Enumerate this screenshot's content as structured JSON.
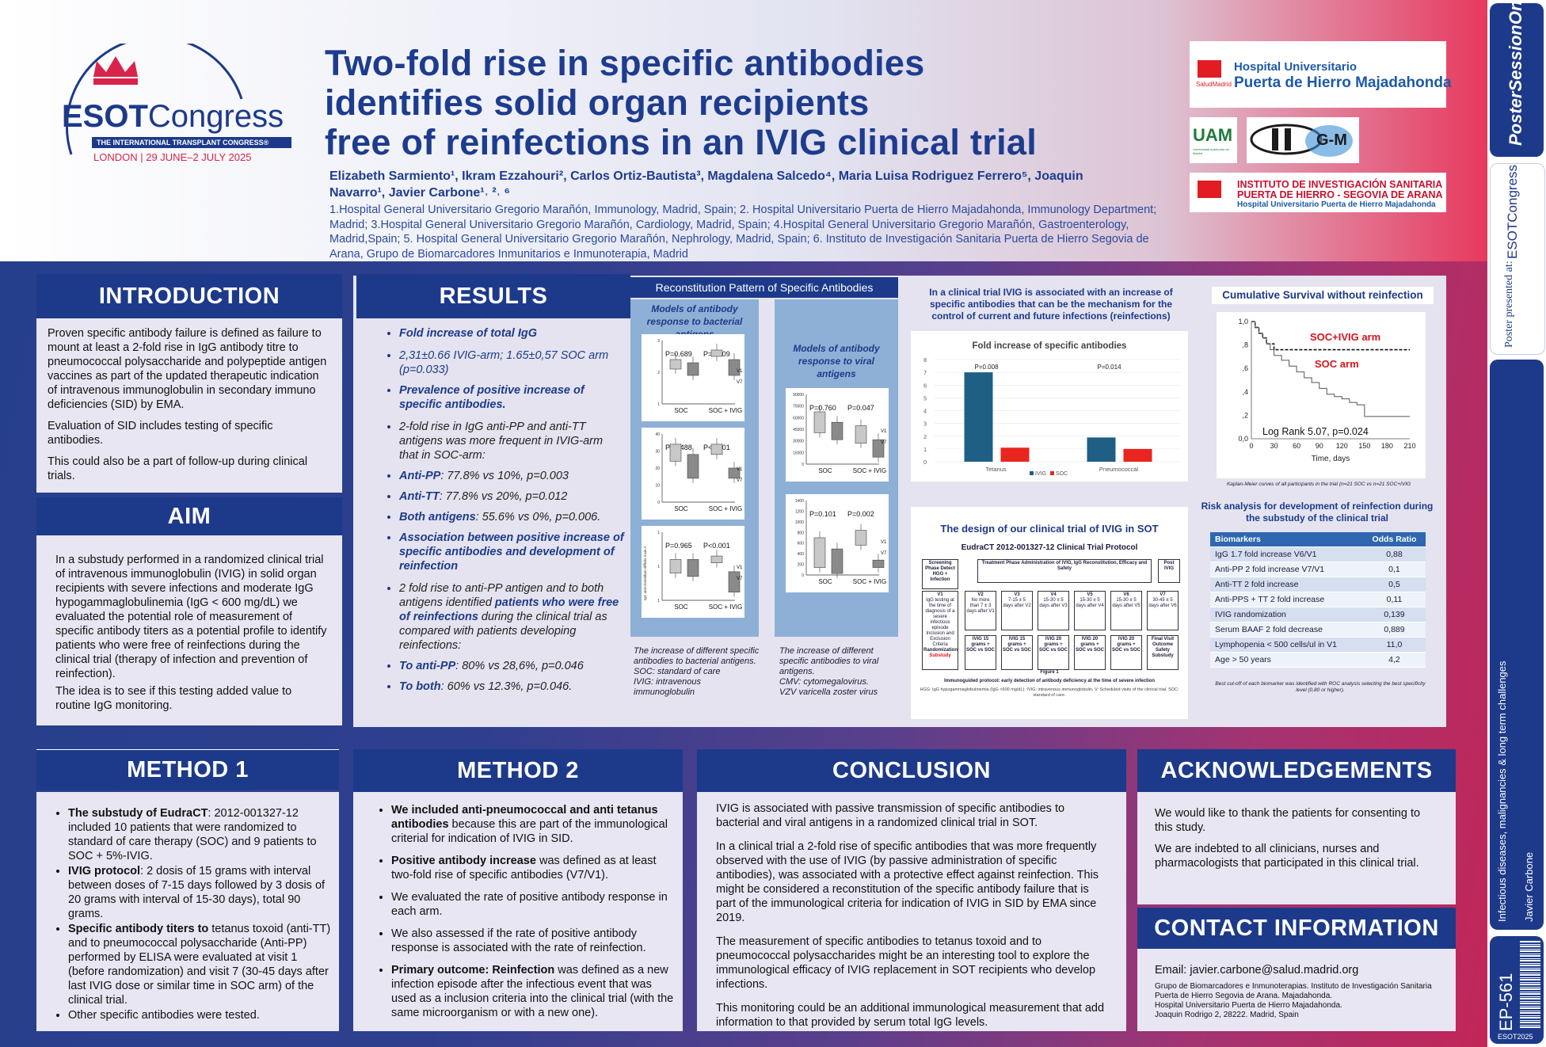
{
  "header": {
    "title_lines": [
      "Two-fold rise in specific antibodies",
      "identifies solid organ recipients",
      "free of reinfections in an IVIG clinical trial"
    ],
    "authors": "Elizabeth Sarmiento¹, Ikram Ezzahouri², Carlos Ortiz-Bautista³, Magdalena Salcedo⁴, Maria Luisa Rodriguez Ferrero⁵, Joaquin Navarro¹, Javier Carbone¹˒ ²˒ ⁶",
    "affiliations": "1.Hospital General Universitario Gregorio Marañón, Immunology, Madrid, Spain; 2. Hospital Universitario Puerta de Hierro Majadahonda, Immunology Department; Madrid; 3.Hospital General Universitario Gregorio Marañón, Cardiology, Madrid, Spain; 4.Hospital General Universitario Gregorio Marañón, Gastroenterology, Madrid,Spain; 5. Hospital General Universitario Gregorio Marañón, Nephrology, Madrid, Spain; 6. Instituto de Investigación Sanitaria Puerta de Hierro Segovia de Arana, Grupo de Biomarcadores Inmunitarios e Inmunoterapia, Madrid"
  },
  "esot": {
    "name_a": "ESOT",
    "name_b": "Congress",
    "tagline": "THE INTERNATIONAL TRANSPLANT CONGRESS®",
    "city": "LONDON | 29 JUNE–2 JULY 2025"
  },
  "logos": {
    "hospital_small": "SaludMadrid",
    "hospital_a": "Hospital Universitario",
    "hospital_b": "Puerta de Hierro Majadahonda",
    "uam": "UAM",
    "uam_sub": "Universidad Autónoma de Madrid",
    "gm": "G-M",
    "inst_a": "INSTITUTO DE INVESTIGACIÓN SANITARIA",
    "inst_b": "PUERTA DE HIERRO - SEGOVIA DE ARANA",
    "inst_c": "Hospital Universitario Puerta de Hierro Majadahonda"
  },
  "sidebar": {
    "poster_session": "PosterSessionOnline",
    "poster_presented": "Poster presented at:",
    "esot_congress": "ESOTCongress",
    "topic": "Infectious diseases, malignancies & long term challenges",
    "presenter": "Javier Carbone",
    "code": "EP-561",
    "year": "ESOT2025"
  },
  "introduction": {
    "heading": "INTRODUCTION",
    "p1": "Proven specific antibody failure is defined as failure to mount at least a 2-fold rise in IgG antibody titre to pneumococcal polysaccharide and polypeptide antigen vaccines as part of the updated therapeutic indication of intravenous immunoglobulin in secondary immuno deficiencies (SID) by EMA.",
    "p2": "Evaluation of SID includes testing of specific antibodies.",
    "p3": "This could also be a part of follow-up during clinical trials."
  },
  "aim": {
    "heading": "AIM",
    "p1": "In a substudy performed in a randomized clinical trial of intravenous immunoglobulin (IVIG) in solid organ recipients with severe infections and moderate IgG hypogammaglobulinemia (IgG < 600 mg/dL) we evaluated the potential role of measurement of specific antibody titers as a potential profile to identify patients who were free of reinfections during the clinical trial (therapy of infection and prevention of reinfection).",
    "p2": "The idea is to see if this testing added value to routine IgG monitoring."
  },
  "results": {
    "heading": "RESULTS",
    "items": [
      {
        "b": "Fold increase of total IgG",
        "t": ""
      },
      {
        "b": "",
        "t": "2,31±0.66 IVIG-arm; 1.65±0,57 SOC arm (p=0.033)",
        "blue": true
      },
      {
        "b": "Prevalence of positive increase of specific antibodies.",
        "t": ""
      },
      {
        "b": "",
        "t": "2-fold rise in IgG anti-PP and anti-TT antigens was more frequent in IVIG-arm that in SOC-arm:"
      },
      {
        "b": "Anti-PP",
        "t": ": 77.8% vs 10%, p=0.003"
      },
      {
        "b": "Anti-TT",
        "t": ": 77.8% vs 20%, p=0.012"
      },
      {
        "b": "Both antigens",
        "t": ": 55.6% vs 0%, p=0.006."
      },
      {
        "b": "Association between positive increase of specific antibodies and development of reinfection",
        "t": ""
      },
      {
        "b": "",
        "t": "2 fold rise to anti-PP antigen and to both antigens identified ",
        "b2": "patients who were free of reinfections",
        "t2": " during the clinical trial as compared with patients developing reinfections:"
      },
      {
        "b": "To anti-PP",
        "t": ": 80% vs 28,6%, p=0.046"
      },
      {
        "b": "To both",
        "t": ": 60% vs 12.3%, p=0.046."
      }
    ]
  },
  "reconstitution": {
    "title": "Reconstitution Pattern of Specific Antibodies",
    "bact_title": "Models of antibody response to bacterial antigens",
    "viral_title": "Models of antibody response to viral antigens",
    "bact_caption": "The increase of different specific antibodies to bacterial antigens.\nSOC: standard of care\nIVIG: intravenous immunoglobulin",
    "viral_caption": "The increase of different specific antibodies to viral antigens.\nCMV: cytomegalovirus.\nVZV varicella zoster virus",
    "bact_panels": [
      {
        "p1": "P=0.689",
        "p2": "P=0.009",
        "yticks": [
          "3",
          "2",
          "1"
        ]
      },
      {
        "p1": "P=0.488",
        "p2": "P<0.001",
        "yticks": [
          "40",
          "30",
          "20",
          "10",
          "0"
        ]
      },
      {
        "p1": "P=0.965",
        "p2": "P<0.001",
        "yticks": [
          "1",
          "1",
          "1"
        ]
      }
    ],
    "viral_panels": [
      {
        "p1": "P=0.760",
        "p2": "P=0.047",
        "yticks": [
          "90000",
          "75000",
          "60000",
          "45000",
          "30000",
          "15000",
          "0"
        ]
      },
      {
        "p1": "P=0.101",
        "p2": "P=0.002",
        "yticks": [
          "1400",
          "1200",
          "1000",
          "800",
          "600",
          "400",
          "200",
          "0"
        ]
      }
    ],
    "groups": [
      "SOC",
      "SOC + IVIG"
    ],
    "legend": [
      "V1",
      "V7"
    ],
    "ylabel3": "IgG anti-clostridium difficile toxin A"
  },
  "fold_chart": {
    "intro": "In a clinical trial IVIG is associated with an increase of specific antibodies that can be the mechanism for the control of current and future infections (reinfections)",
    "chart_data": {
      "type": "bar",
      "title": "Fold increase of specific antibodies",
      "categories": [
        "Tetanus",
        "Pneumococcal"
      ],
      "series": [
        {
          "name": "IVIG",
          "values": [
            7.0,
            1.9
          ],
          "color": "#1f5f86"
        },
        {
          "name": "SOC",
          "values": [
            1.1,
            1.0
          ],
          "color": "#e8251f"
        }
      ],
      "annotations": [
        "P=0.008",
        "P=0.014"
      ],
      "ylim": [
        0,
        8
      ],
      "yticks": [
        "0",
        "1",
        "2",
        "3",
        "4",
        "5",
        "6",
        "7",
        "8"
      ],
      "legend": "bottom"
    }
  },
  "design": {
    "title": "The design of our clinical trial of IVIG in SOT",
    "protocol": "EudraCT 2012-001327-12 Clinical Trial Protocol",
    "screening": "Screening Phase Detect HGG + Infection",
    "treatment": "Treatment Phase Administration of IVIG, IgG Reconstitution, Efficacy and Safety",
    "post": "Post IVIG",
    "v1": "V1",
    "v1_text": "IgG testing at the time of diagnosis of a severe infectious episode Inclusion and Exclusion Criteria",
    "randomization": "Randomization",
    "substudy": "Substudy",
    "visits": [
      {
        "v": "V2",
        "d": "No more than 7 ± 3 days after V1",
        "r": "IVIG 15 grams + SOC vs SOC"
      },
      {
        "v": "V3",
        "d": "7-15 ± 5 days after V2",
        "r": "IVIG 15 grams + SOC vs SOC"
      },
      {
        "v": "V4",
        "d": "15-30 ± 5 days after V3",
        "r": "IVIG 20 grams + SOC vs SOC"
      },
      {
        "v": "V5",
        "d": "15-30 ± 5 days after V4",
        "r": "IVIG 20 grams + SOC vs SOC"
      },
      {
        "v": "V6",
        "d": "15-30 ± 5 days after V5",
        "r": "IVIG 20 grams + SOC vs SOC"
      },
      {
        "v": "V7",
        "d": "30-45 ± 5 days after V6",
        "r": "Final Visit Outcome Safety Substudy"
      }
    ],
    "figure": "Figure 1",
    "fig_caption": "Immunoguided protocol: early detection of antibody deficiency at the time of severe infection",
    "fig_note": "HGG: IgG hypogammaglobulinemia (IgG <600 mg/dL). IVIG: intravenous immunoglobulin. V: Scheduled visits of the clinical trial. SOC: standard of care."
  },
  "survival": {
    "title": "Cumulative Survival without reinfection",
    "chart_data": {
      "type": "line",
      "xlabel": "Time, days",
      "xticks": [
        "0",
        "30",
        "60",
        "90",
        "120",
        "150",
        "180",
        "210"
      ],
      "yticks": [
        "0,0",
        ",2",
        ",4",
        ",6",
        ",8",
        "1,0"
      ],
      "series": [
        {
          "name": "SOC+IVIG arm",
          "color": "#d8141c",
          "x": [
            0,
            5,
            10,
            15,
            20,
            30,
            210
          ],
          "y": [
            1.0,
            0.95,
            0.9,
            0.86,
            0.81,
            0.76,
            0.76
          ]
        },
        {
          "name": "SOC arm",
          "color": "#d8141c",
          "x": [
            0,
            5,
            10,
            15,
            20,
            25,
            30,
            40,
            50,
            60,
            70,
            80,
            90,
            100,
            110,
            120,
            130,
            140,
            150,
            160,
            210
          ],
          "y": [
            1.0,
            0.95,
            0.9,
            0.86,
            0.81,
            0.76,
            0.71,
            0.67,
            0.62,
            0.57,
            0.52,
            0.48,
            0.43,
            0.38,
            0.36,
            0.34,
            0.31,
            0.29,
            0.19,
            0.19,
            0.19
          ]
        }
      ],
      "annotation": "Log Rank 5.07, p=0.024"
    },
    "caption": "Kaplan-Meier curves of all participants in the trial (n=21 SOC vs n=21 SOC+IVIG"
  },
  "risk": {
    "title": "Risk analysis for development of reinfection during the substudy of the clinical trial",
    "col1": "Biomarkers",
    "col2": "Odds Ratio",
    "rows": [
      [
        "IgG 1.7 fold increase V6/V1",
        "0,88"
      ],
      [
        "Anti-PP 2 fold increase V7/V1",
        "0,1"
      ],
      [
        "Anti-TT 2 fold increase",
        "0,5"
      ],
      [
        "Anti-PPS + TT 2 fold increase",
        "0,11"
      ],
      [
        "IVIG randomization",
        "0,139"
      ],
      [
        "Serum BAAF 2 fold decrease",
        "0,889"
      ],
      [
        "Lymphopenia < 500 cells/ul in V1",
        "11,0"
      ],
      [
        "Age > 50 years",
        "4,2"
      ]
    ],
    "note": "Best cut-off of each biomarker was identified with ROC analysis selecting the best specificity level (0,80 or higher)."
  },
  "method1": {
    "heading": "METHOD 1",
    "items": [
      {
        "b": "The substudy of EudraCT",
        "t": ": 2012-001327-12 included 10 patients that were randomized to standard of care therapy (SOC) and 9 patients to SOC + 5%-IVIG."
      },
      {
        "b": "IVIG protocol",
        "t": ": 2 dosis of 15 grams with interval between doses of 7-15 days followed by 3 dosis of 20 grams with interval of 15-30 days), total 90 grams."
      },
      {
        "b": "Specific antibody titers to",
        "t": " tetanus toxoid (anti-TT) and to pneumococcal polysaccharide (Anti-PP) performed by ELISA were evaluated at visit 1 (before randomization) and visit 7 (30-45 days after last IVIG dose or similar time in SOC arm) of the clinical trial."
      },
      {
        "b": "",
        "t": "Other specific antibodies were tested."
      }
    ]
  },
  "method2": {
    "heading": "METHOD 2",
    "items": [
      {
        "b": "We included anti-pneumococcal and anti tetanus antibodies",
        "t": " because this are part of the immunological criterial for indication of IVIG in SID."
      },
      {
        "b": "Positive antibody increase",
        "t": " was defined as at least two-fold rise of specific antibodies (V7/V1)."
      },
      {
        "b": "",
        "t": "We evaluated the rate of positive antibody response in each arm."
      },
      {
        "b": "",
        "t": "We also assessed if the rate of positive antibody response is associated with the rate of reinfection."
      },
      {
        "b": "Primary outcome: Reinfection",
        "t": " was defined as a new infection episode after the infectious event that was used as a inclusion criteria into the clinical trial (with the same microorganism or with a new one)."
      }
    ]
  },
  "conclusion": {
    "heading": "CONCLUSION",
    "paras": [
      "IVIG is associated with passive transmission of specific antibodies to bacterial and viral antigens in a randomized clinical trial in SOT.",
      "In a clinical trial a 2-fold rise of specific antibodies that was more frequently observed with the use of IVIG (by passive administration of specific antibodies), was associated with a protective effect against reinfection. This might be considered a reconstitution of the specific antibody failure that is part of the immunological criteria for indication of IVIG in SID by EMA since 2019.",
      "The measurement of specific antibodies to tetanus toxoid and to pneumococcal polysaccharides might be an interesting tool to explore the immunological efficacy of IVIG replacement in SOT recipients who develop infections.",
      "This monitoring could be an additional immunological measurement that add information to that provided by serum total IgG levels."
    ]
  },
  "acknowledgements": {
    "heading": "ACKNOWLEDGEMENTS",
    "p1": "We would like to thank the patients for consenting to this study.",
    "p2": "We are indebted to all clinicians, nurses and pharmacologists that participated in this clinical trial."
  },
  "contact": {
    "heading": "CONTACT INFORMATION",
    "email": "Email: javier.carbone@salud.madrid.org",
    "lines": [
      "Grupo de Biomarcadores e Inmunoterapias. Instituto de Investigación Sanitaria Puerta de Hierro Segovia de Arana. Majadahonda.",
      "Hospital Universitario Puerta de Hierro Majadahonda.",
      "Joaquin Rodrigo 2, 28222. Madrid, Spain"
    ]
  }
}
